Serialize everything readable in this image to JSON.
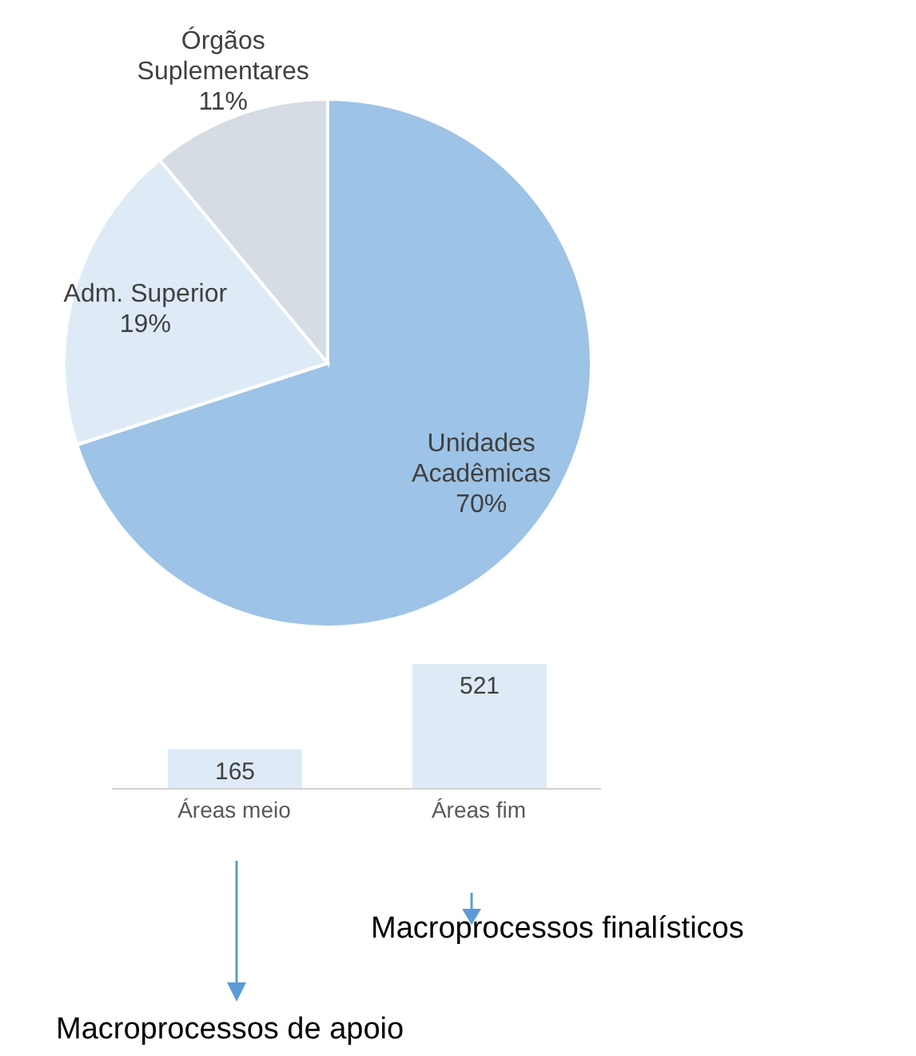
{
  "chart_data": [
    {
      "type": "pie",
      "categories": [
        "Unidades Acadêmicas",
        "Adm. Superior",
        "Órgãos Suplementares"
      ],
      "values": [
        70,
        19,
        11
      ],
      "colors": [
        "#9dc3e6",
        "#deebf7",
        "#d6dce4"
      ],
      "value_labels": [
        "70%",
        "19%",
        "11%"
      ]
    },
    {
      "type": "bar",
      "categories": [
        "Áreas meio",
        "Áreas fim"
      ],
      "values": [
        165,
        521
      ],
      "color": "#deebf7",
      "data_labels": true,
      "annotations": [
        "Macroprocessos finalísticos",
        "Macroprocessos de apoio"
      ]
    }
  ]
}
